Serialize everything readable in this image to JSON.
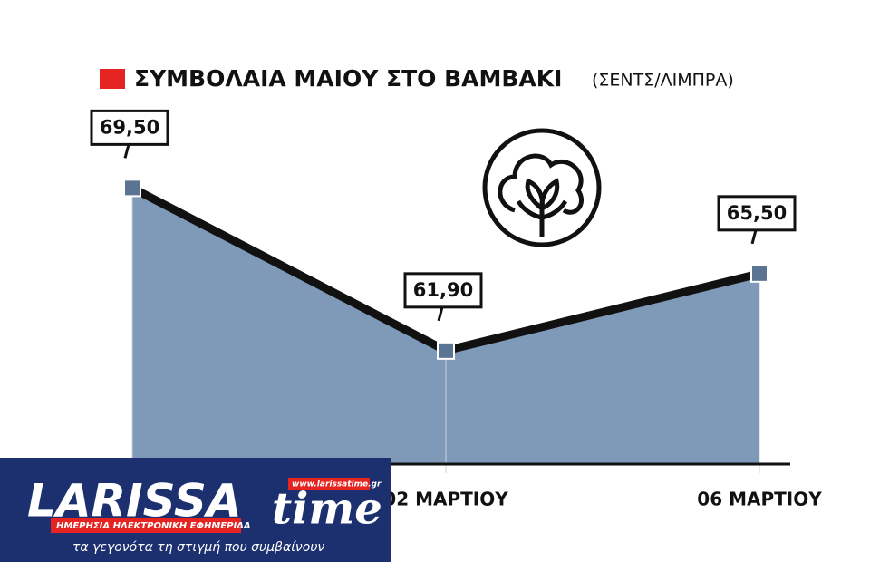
{
  "chart_data": {
    "type": "area",
    "title": "ΣΥΜΒΟΛΑΙΑ ΜΑΙΟΥ ΣΤΟ ΒΑΜΒΑΚΙ",
    "subtitle": "(ΣΕΝΤΣ/ΛΙΜΠΡΑ)",
    "categories": [
      null,
      "02 ΜΑΡΤΙΟΥ",
      "06 ΜΑΡΤΙΟΥ"
    ],
    "values": [
      69.5,
      61.9,
      65.5
    ],
    "value_labels": [
      "69,50",
      "61,90",
      "65,50"
    ],
    "color": "#7f99b8",
    "line_color": "#111111",
    "marker_color": "#5b7491",
    "legend_color": "#e52421",
    "ylim": [
      56.6,
      73.2
    ]
  },
  "logo": {
    "name_main": "LARISSA",
    "name_script": "time",
    "url": "www.larissatime.gr",
    "tagline": "ΗΜΕΡΗΣΙΑ ΗΛΕΚΤΡΟΝΙΚΗ ΕΦΗΜΕΡΙΔΑ",
    "slogan": "τα γεγονότα τη στιγμή που συμβαίνουν"
  }
}
